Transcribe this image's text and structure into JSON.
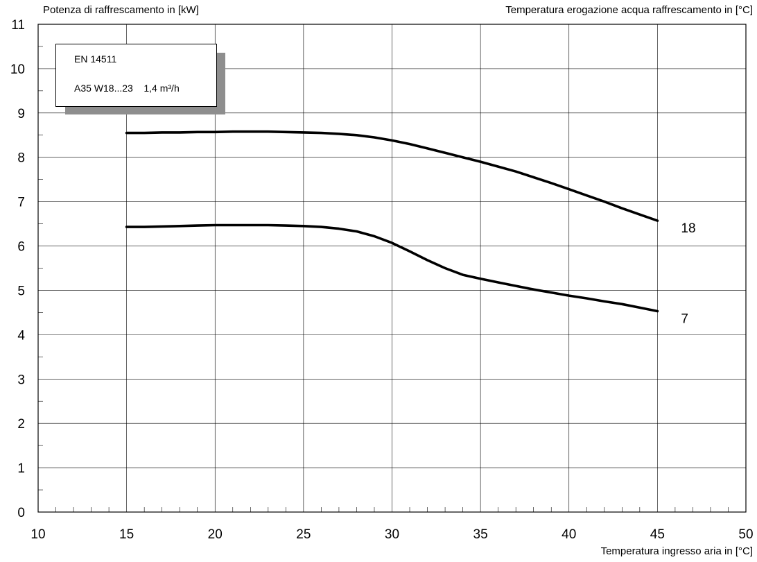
{
  "chart_data": {
    "type": "line",
    "ylabel": "Potenza di raffrescamento in [kW]",
    "series_title": "Temperatura erogazione acqua raffrescamento in [°C]",
    "xlabel": "Temperatura ingresso aria in [°C]",
    "xlim": [
      10,
      50
    ],
    "ylim": [
      0,
      11
    ],
    "xticks": [
      10,
      15,
      20,
      25,
      30,
      35,
      40,
      45,
      50
    ],
    "yticks": [
      0,
      1,
      2,
      3,
      4,
      5,
      6,
      7,
      8,
      9,
      10,
      11
    ],
    "grid": true,
    "legend_box": {
      "line1": "EN 14511",
      "line2": "A35 W18...23    1,4 m³/h"
    },
    "series": [
      {
        "name": "18",
        "x": [
          15,
          16,
          17,
          18,
          19,
          20,
          21,
          22,
          23,
          24,
          25,
          26,
          27,
          28,
          29,
          30,
          31,
          32,
          33,
          34,
          35,
          36,
          37,
          38,
          39,
          40,
          41,
          42,
          43,
          44,
          45
        ],
        "values": [
          8.55,
          8.55,
          8.56,
          8.56,
          8.57,
          8.57,
          8.58,
          8.58,
          8.58,
          8.57,
          8.56,
          8.55,
          8.53,
          8.5,
          8.45,
          8.38,
          8.3,
          8.2,
          8.1,
          8.0,
          7.9,
          7.79,
          7.68,
          7.55,
          7.42,
          7.28,
          7.14,
          7.0,
          6.85,
          6.71,
          6.57
        ]
      },
      {
        "name": "7",
        "x": [
          15,
          16,
          17,
          18,
          19,
          20,
          21,
          22,
          23,
          24,
          25,
          26,
          27,
          28,
          29,
          30,
          31,
          32,
          33,
          34,
          35,
          36,
          37,
          38,
          39,
          40,
          41,
          42,
          43,
          44,
          45
        ],
        "values": [
          6.43,
          6.43,
          6.44,
          6.45,
          6.46,
          6.47,
          6.47,
          6.47,
          6.47,
          6.46,
          6.45,
          6.43,
          6.39,
          6.33,
          6.22,
          6.07,
          5.88,
          5.68,
          5.5,
          5.35,
          5.26,
          5.18,
          5.1,
          5.02,
          4.95,
          4.88,
          4.82,
          4.75,
          4.69,
          4.61,
          4.53
        ]
      }
    ]
  }
}
